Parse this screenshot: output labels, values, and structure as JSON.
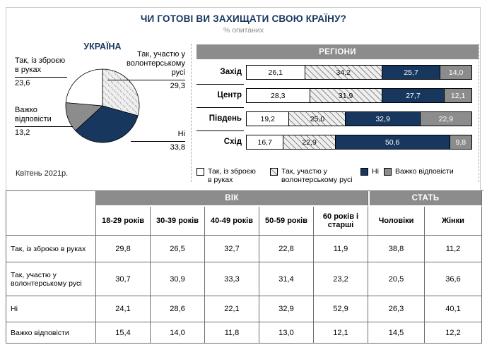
{
  "header": {
    "title": "ЧИ ГОТОВІ ВИ ЗАХИЩАТИ СВОЮ КРАЇНУ?",
    "subtitle": "% опитаних"
  },
  "ukraine": {
    "section_title": "УКРАЇНА",
    "date_note": "Квітень 2021р.",
    "labels": {
      "armed": "Так, із зброєю\nв руках",
      "volunteer": "Так, участю у\nволонтерському\nрусі",
      "no": "Ні",
      "hard": "Важко\nвідповісти"
    }
  },
  "regions": {
    "section_title": "РЕГІОНИ"
  },
  "legend": {
    "items": [
      {
        "label": "Так, із зброєю\nв руках",
        "style": "white"
      },
      {
        "label": "Так, участю у\nволонтерському русі",
        "style": "hatch"
      },
      {
        "label": "Ні",
        "style": "navy"
      },
      {
        "label": "Важко відповісти",
        "style": "gray"
      }
    ]
  },
  "colors": {
    "navy": "#17375e",
    "gray": "#8c8c8c",
    "hatch_bg": "#efefef",
    "hatch_line": "#8a8a8a",
    "band_gray": "#8c8c8c",
    "title_navy": "#17375e"
  },
  "chart_data": [
    {
      "type": "pie",
      "title": "УКРАЇНА",
      "legend_position": "callout-labels",
      "slices": [
        {
          "label": "Так, участю у волонтерському русі",
          "value": 29.3,
          "display": "29,3",
          "style": "hatch"
        },
        {
          "label": "Ні",
          "value": 33.8,
          "display": "33,8",
          "style": "navy"
        },
        {
          "label": "Важко відповісти",
          "value": 13.2,
          "display": "13,2",
          "style": "gray"
        },
        {
          "label": "Так, із зброєю в руках",
          "value": 23.6,
          "display": "23,6",
          "style": "white"
        }
      ]
    },
    {
      "type": "bar",
      "stacked": true,
      "orientation": "horizontal",
      "title": "РЕГІОНИ",
      "categories": [
        "Захід",
        "Центр",
        "Південь",
        "Схід"
      ],
      "series": [
        {
          "name": "Так, із зброєю в руках",
          "style": "white",
          "values": [
            26.1,
            28.3,
            19.2,
            16.7
          ]
        },
        {
          "name": "Так, участю у волонтерському русі",
          "style": "hatch",
          "values": [
            34.2,
            31.9,
            25.0,
            22.9
          ]
        },
        {
          "name": "Ні",
          "style": "navy",
          "values": [
            25.7,
            27.7,
            32.9,
            50.6
          ]
        },
        {
          "name": "Важко відповісти",
          "style": "gray",
          "values": [
            14.0,
            12.1,
            22.9,
            9.8
          ]
        }
      ],
      "xlim": [
        0,
        100
      ],
      "unit": "%"
    },
    {
      "type": "table",
      "col_groups": [
        {
          "label": "ВІК",
          "span": 5
        },
        {
          "label": "СТАТЬ",
          "span": 2
        }
      ],
      "columns": [
        "18-29 років",
        "30-39 років",
        "40-49 років",
        "50-59 років",
        "60 років і старші",
        "Чоловіки",
        "Жінки"
      ],
      "rows": [
        {
          "label": "Так, із зброєю в руках",
          "values": [
            29.8,
            26.5,
            32.7,
            22.8,
            11.9,
            38.8,
            11.2
          ]
        },
        {
          "label": "Так, участю у волонтерському русі",
          "values": [
            30.7,
            30.9,
            33.3,
            31.4,
            23.2,
            20.5,
            36.6
          ]
        },
        {
          "label": "Ні",
          "values": [
            24.1,
            28.6,
            22.1,
            32.9,
            52.9,
            26.3,
            40.1
          ]
        },
        {
          "label": "Важко відповісти",
          "values": [
            15.4,
            14.0,
            11.8,
            13.0,
            12.1,
            14.5,
            12.2
          ]
        }
      ]
    }
  ]
}
